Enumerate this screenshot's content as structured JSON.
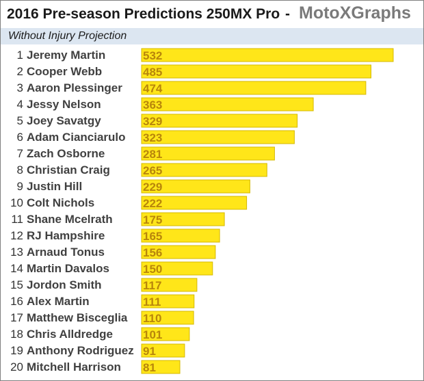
{
  "header": {
    "title": "2016 Pre-season Predictions 250MX Pro",
    "separator": "-",
    "brand": "MotoXGraphs",
    "subtitle": "Without Injury Projection"
  },
  "colors": {
    "bar_fill": "#ffe619",
    "bar_stroke": "#d4b800",
    "value_label": "#b8860b",
    "subtitle_band": "#dce6f1"
  },
  "chart_data": {
    "type": "bar",
    "orientation": "horizontal",
    "title": "2016 Pre-season Predictions 250MX Pro",
    "subtitle": "Without Injury Projection",
    "ranks": [
      1,
      2,
      3,
      4,
      5,
      6,
      7,
      8,
      9,
      10,
      11,
      12,
      13,
      14,
      15,
      16,
      17,
      18,
      19,
      20
    ],
    "categories": [
      "Jeremy Martin",
      "Cooper Webb",
      "Aaron Plessinger",
      "Jessy Nelson",
      "Joey Savatgy",
      "Adam Cianciarulo",
      "Zach Osborne",
      "Christian Craig",
      "Justin Hill",
      "Colt Nichols",
      "Shane Mcelrath",
      "RJ Hampshire",
      "Arnaud Tonus",
      "Martin Davalos",
      "Jordon Smith",
      "Alex Martin",
      "Matthew Bisceglia",
      "Chris Alldredge",
      "Anthony Rodriguez",
      "Mitchell Harrison"
    ],
    "values": [
      532,
      485,
      474,
      363,
      329,
      323,
      281,
      265,
      229,
      222,
      175,
      165,
      156,
      150,
      117,
      111,
      110,
      101,
      91,
      81
    ],
    "xlim": [
      0,
      532
    ],
    "grid": false,
    "legend": "none"
  }
}
